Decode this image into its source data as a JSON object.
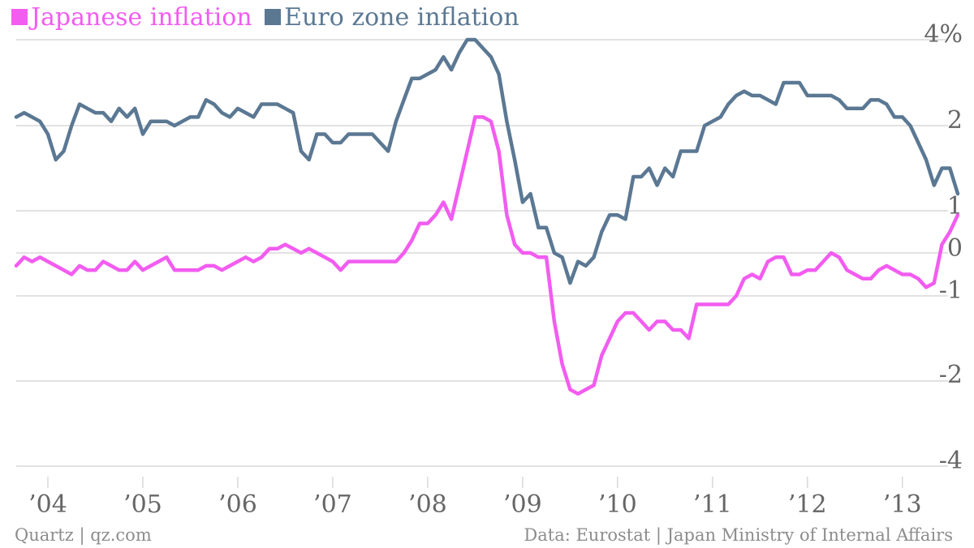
{
  "chart_data": {
    "type": "line",
    "colors": {
      "japan": "#f25cf0",
      "euro": "#5b7893",
      "grid": "#d9d9d9",
      "tick_text": "#666666"
    },
    "y_tick_labels": [
      "4%",
      "2",
      "1",
      "0",
      "-1",
      "-2",
      "-4"
    ],
    "y_tick_values": [
      4,
      2,
      1,
      0,
      -1,
      -2,
      -4
    ],
    "x_tick_labels": [
      "’04",
      "’05",
      "’06",
      "’07",
      "’08",
      "’09",
      "’10",
      "’11",
      "’12",
      "’13"
    ],
    "x_tick_values": [
      "2004-01",
      "2005-01",
      "2006-01",
      "2007-01",
      "2008-01",
      "2009-01",
      "2010-01",
      "2011-01",
      "2012-01",
      "2013-01"
    ],
    "x_range": [
      "2003-09",
      "2013-08"
    ],
    "grid": true,
    "legend_position": "top-left",
    "series": [
      {
        "name": "Japanese inflation",
        "key": "japan",
        "points": [
          [
            "2003-09",
            -0.3
          ],
          [
            "2003-10",
            -0.1
          ],
          [
            "2003-11",
            -0.2
          ],
          [
            "2003-12",
            -0.1
          ],
          [
            "2004-01",
            -0.2
          ],
          [
            "2004-02",
            -0.3
          ],
          [
            "2004-03",
            -0.4
          ],
          [
            "2004-04",
            -0.5
          ],
          [
            "2004-05",
            -0.3
          ],
          [
            "2004-06",
            -0.4
          ],
          [
            "2004-07",
            -0.4
          ],
          [
            "2004-08",
            -0.2
          ],
          [
            "2004-09",
            -0.3
          ],
          [
            "2004-10",
            -0.4
          ],
          [
            "2004-11",
            -0.4
          ],
          [
            "2004-12",
            -0.2
          ],
          [
            "2005-01",
            -0.4
          ],
          [
            "2005-02",
            -0.3
          ],
          [
            "2005-03",
            -0.2
          ],
          [
            "2005-04",
            -0.1
          ],
          [
            "2005-05",
            -0.4
          ],
          [
            "2005-06",
            -0.4
          ],
          [
            "2005-07",
            -0.4
          ],
          [
            "2005-08",
            -0.4
          ],
          [
            "2005-09",
            -0.3
          ],
          [
            "2005-10",
            -0.3
          ],
          [
            "2005-11",
            -0.4
          ],
          [
            "2005-12",
            -0.3
          ],
          [
            "2006-01",
            -0.2
          ],
          [
            "2006-02",
            -0.1
          ],
          [
            "2006-03",
            -0.2
          ],
          [
            "2006-04",
            -0.1
          ],
          [
            "2006-05",
            0.1
          ],
          [
            "2006-06",
            0.1
          ],
          [
            "2006-07",
            0.2
          ],
          [
            "2006-08",
            0.1
          ],
          [
            "2006-09",
            0.0
          ],
          [
            "2006-10",
            0.1
          ],
          [
            "2006-11",
            0.0
          ],
          [
            "2006-12",
            -0.1
          ],
          [
            "2007-01",
            -0.2
          ],
          [
            "2007-02",
            -0.4
          ],
          [
            "2007-03",
            -0.2
          ],
          [
            "2007-04",
            -0.2
          ],
          [
            "2007-05",
            -0.2
          ],
          [
            "2007-06",
            -0.2
          ],
          [
            "2007-07",
            -0.2
          ],
          [
            "2007-08",
            -0.2
          ],
          [
            "2007-09",
            -0.2
          ],
          [
            "2007-10",
            0.0
          ],
          [
            "2007-11",
            0.3
          ],
          [
            "2007-12",
            0.7
          ],
          [
            "2008-01",
            0.7
          ],
          [
            "2008-02",
            0.9
          ],
          [
            "2008-03",
            1.1
          ],
          [
            "2008-04",
            0.8
          ],
          [
            "2008-05",
            1.3
          ],
          [
            "2008-06",
            1.7
          ],
          [
            "2008-07",
            2.2
          ],
          [
            "2008-08",
            2.2
          ],
          [
            "2008-09",
            2.1
          ],
          [
            "2008-10",
            1.7
          ],
          [
            "2008-11",
            0.9
          ],
          [
            "2008-12",
            0.2
          ],
          [
            "2009-01",
            0.0
          ],
          [
            "2009-02",
            0.0
          ],
          [
            "2009-03",
            -0.1
          ],
          [
            "2009-04",
            -0.1
          ],
          [
            "2009-05",
            -1.3
          ],
          [
            "2009-06",
            -1.8
          ],
          [
            "2009-07",
            -2.2
          ],
          [
            "2009-08",
            -2.3
          ],
          [
            "2009-09",
            -2.2
          ],
          [
            "2009-10",
            -2.1
          ],
          [
            "2009-11",
            -1.7
          ],
          [
            "2009-12",
            -1.5
          ],
          [
            "2010-01",
            -1.3
          ],
          [
            "2010-02",
            -1.2
          ],
          [
            "2010-03",
            -1.2
          ],
          [
            "2010-04",
            -1.3
          ],
          [
            "2010-05",
            -1.4
          ],
          [
            "2010-06",
            -1.3
          ],
          [
            "2010-07",
            -1.3
          ],
          [
            "2010-08",
            -1.4
          ],
          [
            "2010-09",
            -1.4
          ],
          [
            "2010-10",
            -1.5
          ],
          [
            "2010-11",
            -1.1
          ],
          [
            "2010-12",
            -1.1
          ],
          [
            "2011-01",
            -1.1
          ],
          [
            "2011-02",
            -1.1
          ],
          [
            "2011-03",
            -1.1
          ],
          [
            "2011-04",
            -1.0
          ],
          [
            "2011-05",
            -0.6
          ],
          [
            "2011-06",
            -0.5
          ],
          [
            "2011-07",
            -0.6
          ],
          [
            "2011-08",
            -0.2
          ],
          [
            "2011-09",
            -0.1
          ],
          [
            "2011-10",
            -0.1
          ],
          [
            "2011-11",
            -0.5
          ],
          [
            "2011-12",
            -0.5
          ],
          [
            "2012-01",
            -0.4
          ],
          [
            "2012-02",
            -0.4
          ],
          [
            "2012-03",
            -0.2
          ],
          [
            "2012-04",
            0.0
          ],
          [
            "2012-05",
            -0.1
          ],
          [
            "2012-06",
            -0.4
          ],
          [
            "2012-07",
            -0.5
          ],
          [
            "2012-08",
            -0.6
          ],
          [
            "2012-09",
            -0.6
          ],
          [
            "2012-10",
            -0.4
          ],
          [
            "2012-11",
            -0.3
          ],
          [
            "2012-12",
            -0.4
          ],
          [
            "2013-01",
            -0.5
          ],
          [
            "2013-02",
            -0.5
          ],
          [
            "2013-03",
            -0.6
          ],
          [
            "2013-04",
            -0.8
          ],
          [
            "2013-05",
            -0.7
          ],
          [
            "2013-06",
            0.2
          ],
          [
            "2013-07",
            0.5
          ],
          [
            "2013-08",
            0.9
          ]
        ]
      },
      {
        "name": "Euro zone inflation",
        "key": "euro",
        "points": [
          [
            "2003-09",
            2.2
          ],
          [
            "2003-10",
            2.3
          ],
          [
            "2003-11",
            2.2
          ],
          [
            "2003-12",
            2.1
          ],
          [
            "2004-01",
            1.9
          ],
          [
            "2004-02",
            1.6
          ],
          [
            "2004-03",
            1.7
          ],
          [
            "2004-04",
            2.0
          ],
          [
            "2004-05",
            2.5
          ],
          [
            "2004-06",
            2.4
          ],
          [
            "2004-07",
            2.3
          ],
          [
            "2004-08",
            2.3
          ],
          [
            "2004-09",
            2.1
          ],
          [
            "2004-10",
            2.4
          ],
          [
            "2004-11",
            2.2
          ],
          [
            "2004-12",
            2.4
          ],
          [
            "2005-01",
            1.9
          ],
          [
            "2005-02",
            2.1
          ],
          [
            "2005-03",
            2.1
          ],
          [
            "2005-04",
            2.1
          ],
          [
            "2005-05",
            2.0
          ],
          [
            "2005-06",
            2.1
          ],
          [
            "2005-07",
            2.2
          ],
          [
            "2005-08",
            2.2
          ],
          [
            "2005-09",
            2.6
          ],
          [
            "2005-10",
            2.5
          ],
          [
            "2005-11",
            2.3
          ],
          [
            "2005-12",
            2.2
          ],
          [
            "2006-01",
            2.4
          ],
          [
            "2006-02",
            2.3
          ],
          [
            "2006-03",
            2.2
          ],
          [
            "2006-04",
            2.5
          ],
          [
            "2006-05",
            2.5
          ],
          [
            "2006-06",
            2.5
          ],
          [
            "2006-07",
            2.4
          ],
          [
            "2006-08",
            2.3
          ],
          [
            "2006-09",
            1.7
          ],
          [
            "2006-10",
            1.6
          ],
          [
            "2006-11",
            1.9
          ],
          [
            "2006-12",
            1.9
          ],
          [
            "2007-01",
            1.8
          ],
          [
            "2007-02",
            1.8
          ],
          [
            "2007-03",
            1.9
          ],
          [
            "2007-04",
            1.9
          ],
          [
            "2007-05",
            1.9
          ],
          [
            "2007-06",
            1.9
          ],
          [
            "2007-07",
            1.8
          ],
          [
            "2007-08",
            1.7
          ],
          [
            "2007-09",
            2.1
          ],
          [
            "2007-10",
            2.6
          ],
          [
            "2007-11",
            3.1
          ],
          [
            "2007-12",
            3.1
          ],
          [
            "2008-01",
            3.2
          ],
          [
            "2008-02",
            3.3
          ],
          [
            "2008-03",
            3.6
          ],
          [
            "2008-04",
            3.3
          ],
          [
            "2008-05",
            3.7
          ],
          [
            "2008-06",
            4.0
          ],
          [
            "2008-07",
            4.0
          ],
          [
            "2008-08",
            3.8
          ],
          [
            "2008-09",
            3.6
          ],
          [
            "2008-10",
            3.2
          ],
          [
            "2008-11",
            2.1
          ],
          [
            "2008-12",
            1.6
          ],
          [
            "2009-01",
            1.1
          ],
          [
            "2009-02",
            1.2
          ],
          [
            "2009-03",
            0.6
          ],
          [
            "2009-04",
            0.6
          ],
          [
            "2009-05",
            0.0
          ],
          [
            "2009-06",
            -0.1
          ],
          [
            "2009-07",
            -0.7
          ],
          [
            "2009-08",
            -0.2
          ],
          [
            "2009-09",
            -0.3
          ],
          [
            "2009-10",
            -0.1
          ],
          [
            "2009-11",
            0.5
          ],
          [
            "2009-12",
            0.9
          ],
          [
            "2010-01",
            0.9
          ],
          [
            "2010-02",
            0.8
          ],
          [
            "2010-03",
            1.4
          ],
          [
            "2010-04",
            1.4
          ],
          [
            "2010-05",
            1.5
          ],
          [
            "2010-06",
            1.3
          ],
          [
            "2010-07",
            1.5
          ],
          [
            "2010-08",
            1.4
          ],
          [
            "2010-09",
            1.7
          ],
          [
            "2010-10",
            1.7
          ],
          [
            "2010-11",
            1.7
          ],
          [
            "2010-12",
            2.0
          ],
          [
            "2011-01",
            2.1
          ],
          [
            "2011-02",
            2.2
          ],
          [
            "2011-03",
            2.5
          ],
          [
            "2011-04",
            2.7
          ],
          [
            "2011-05",
            2.8
          ],
          [
            "2011-06",
            2.7
          ],
          [
            "2011-07",
            2.7
          ],
          [
            "2011-08",
            2.6
          ],
          [
            "2011-09",
            2.5
          ],
          [
            "2011-10",
            3.0
          ],
          [
            "2011-11",
            3.0
          ],
          [
            "2011-12",
            3.0
          ],
          [
            "2012-01",
            2.7
          ],
          [
            "2012-02",
            2.7
          ],
          [
            "2012-03",
            2.7
          ],
          [
            "2012-04",
            2.7
          ],
          [
            "2012-05",
            2.6
          ],
          [
            "2012-06",
            2.4
          ],
          [
            "2012-07",
            2.4
          ],
          [
            "2012-08",
            2.4
          ],
          [
            "2012-09",
            2.6
          ],
          [
            "2012-10",
            2.6
          ],
          [
            "2012-11",
            2.5
          ],
          [
            "2012-12",
            2.2
          ],
          [
            "2013-01",
            2.2
          ],
          [
            "2013-02",
            2.0
          ],
          [
            "2013-03",
            1.8
          ],
          [
            "2013-04",
            1.6
          ],
          [
            "2013-05",
            1.3
          ],
          [
            "2013-06",
            1.5
          ],
          [
            "2013-07",
            1.5
          ],
          [
            "2013-08",
            1.2
          ]
        ]
      }
    ],
    "footer_left": "Quartz | qz.com",
    "footer_right": "Data: Eurostat | Japan Ministry of Internal Affairs"
  }
}
